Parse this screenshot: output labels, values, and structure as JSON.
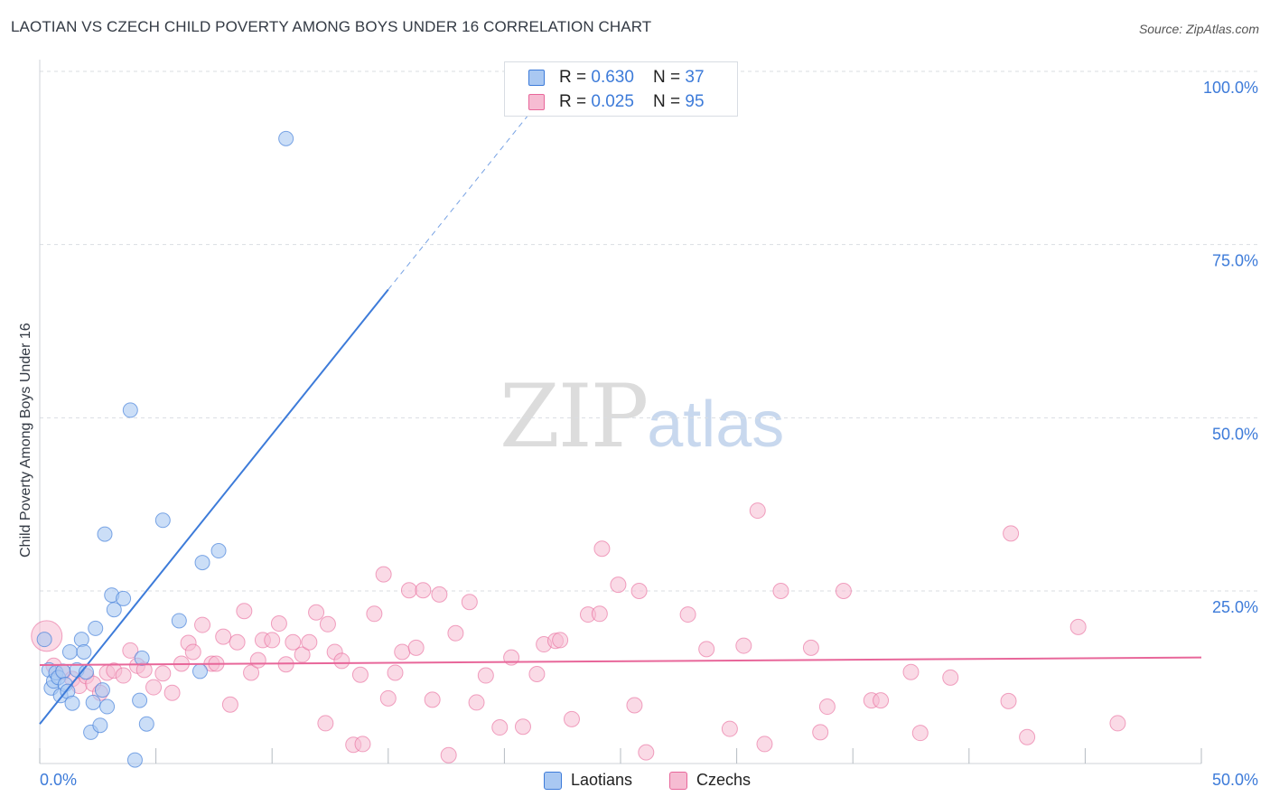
{
  "title": "LAOTIAN VS CZECH CHILD POVERTY AMONG BOYS UNDER 16 CORRELATION CHART",
  "source": "Source: ZipAtlas.com",
  "watermark": {
    "zip": "ZIP",
    "atlas": "atlas"
  },
  "legend": {
    "laotians": {
      "r_label": "R = ",
      "r_value": "0.630",
      "n_label": "N = ",
      "n_value": "37"
    },
    "czechs": {
      "r_label": "R = ",
      "r_value": "0.025",
      "n_label": "N = ",
      "n_value": "95"
    }
  },
  "bottom_legend": {
    "laotians": "Laotians",
    "czechs": "Czechs"
  },
  "chart_data": {
    "type": "scatter",
    "title": "LAOTIAN VS CZECH CHILD POVERTY AMONG BOYS UNDER 16 CORRELATION CHART",
    "xlabel": "",
    "ylabel": "Child Poverty Among Boys Under 16",
    "xlim": [
      0,
      50
    ],
    "ylim": [
      0,
      105
    ],
    "x_ticks": [
      0,
      5,
      10,
      15,
      20,
      25,
      30,
      35,
      40,
      45,
      50
    ],
    "x_tick_labels": {
      "0": "0.0%",
      "50": "50.0%"
    },
    "y_ticks": [
      25,
      50,
      75,
      100
    ],
    "y_tick_labels": [
      "25.0%",
      "50.0%",
      "75.0%",
      "100.0%"
    ],
    "grid": "horizontal dashed",
    "colors": {
      "laotians": "#3d7bd9",
      "laotians_fill": "#a9c8f2",
      "czechs": "#e8679a",
      "czechs_fill": "#f6bcd2",
      "axis_label": "#3d7bd9"
    },
    "series": [
      {
        "name": "Laotians",
        "regression": {
          "x0": 0,
          "y0": 5.8,
          "x1": 15,
          "y1": 68.5,
          "dashed_to_x": 21.5
        },
        "points": [
          [
            0.2,
            18
          ],
          [
            0.4,
            13.6
          ],
          [
            0.5,
            11
          ],
          [
            0.6,
            12
          ],
          [
            0.7,
            13.2
          ],
          [
            0.8,
            12.5
          ],
          [
            0.9,
            9.9
          ],
          [
            1.0,
            13.4
          ],
          [
            1.1,
            11.5
          ],
          [
            1.2,
            10.5
          ],
          [
            1.3,
            16.2
          ],
          [
            1.4,
            8.8
          ],
          [
            1.6,
            13.6
          ],
          [
            1.8,
            18
          ],
          [
            1.9,
            16.2
          ],
          [
            2.0,
            13.3
          ],
          [
            2.2,
            4.6
          ],
          [
            2.3,
            8.9
          ],
          [
            2.4,
            19.6
          ],
          [
            2.6,
            5.6
          ],
          [
            2.7,
            10.7
          ],
          [
            2.8,
            33.2
          ],
          [
            2.9,
            8.3
          ],
          [
            3.1,
            24.4
          ],
          [
            3.2,
            22.3
          ],
          [
            3.6,
            23.9
          ],
          [
            3.9,
            51.1
          ],
          [
            4.1,
            0.6
          ],
          [
            4.3,
            9.2
          ],
          [
            4.4,
            15.3
          ],
          [
            4.6,
            5.8
          ],
          [
            5.3,
            35.2
          ],
          [
            6.0,
            20.7
          ],
          [
            6.9,
            13.4
          ],
          [
            7.0,
            29.1
          ],
          [
            7.7,
            30.8
          ],
          [
            10.6,
            90.3
          ]
        ]
      },
      {
        "name": "Czechs",
        "regression": {
          "x0": 0,
          "y0": 14.3,
          "x1": 50,
          "y1": 15.4
        },
        "points": [
          [
            0.3,
            18.5
          ],
          [
            0.6,
            14.2
          ],
          [
            1.0,
            13.3
          ],
          [
            1.4,
            12.3
          ],
          [
            1.7,
            11.3
          ],
          [
            2.0,
            12.7
          ],
          [
            2.3,
            11.6
          ],
          [
            2.6,
            10.3
          ],
          [
            2.9,
            13.2
          ],
          [
            3.2,
            13.5
          ],
          [
            3.6,
            12.8
          ],
          [
            3.9,
            16.4
          ],
          [
            4.2,
            14.2
          ],
          [
            4.5,
            13.6
          ],
          [
            4.9,
            11.1
          ],
          [
            5.3,
            13.1
          ],
          [
            5.7,
            10.3
          ],
          [
            6.1,
            14.5
          ],
          [
            6.4,
            17.5
          ],
          [
            6.6,
            16.2
          ],
          [
            7.0,
            20.1
          ],
          [
            7.4,
            14.5
          ],
          [
            7.6,
            14.5
          ],
          [
            7.9,
            18.4
          ],
          [
            8.2,
            8.6
          ],
          [
            8.5,
            17.6
          ],
          [
            8.8,
            22.1
          ],
          [
            9.1,
            13.2
          ],
          [
            9.4,
            15
          ],
          [
            9.6,
            17.9
          ],
          [
            10.0,
            17.9
          ],
          [
            10.3,
            20.3
          ],
          [
            10.6,
            14.4
          ],
          [
            10.9,
            17.6
          ],
          [
            11.3,
            15.8
          ],
          [
            11.6,
            17.6
          ],
          [
            11.9,
            21.9
          ],
          [
            12.4,
            20.2
          ],
          [
            12.7,
            16.2
          ],
          [
            13.0,
            14.9
          ],
          [
            12.3,
            5.9
          ],
          [
            13.5,
            2.8
          ],
          [
            13.9,
            2.9
          ],
          [
            13.8,
            12.9
          ],
          [
            14.4,
            21.7
          ],
          [
            14.8,
            27.4
          ],
          [
            15.0,
            9.5
          ],
          [
            15.3,
            13.2
          ],
          [
            15.6,
            16.2
          ],
          [
            15.9,
            25.1
          ],
          [
            16.2,
            16.8
          ],
          [
            16.5,
            25.1
          ],
          [
            17.2,
            24.5
          ],
          [
            16.9,
            9.3
          ],
          [
            17.6,
            1.3
          ],
          [
            17.9,
            18.9
          ],
          [
            18.5,
            23.4
          ],
          [
            18.8,
            8.9
          ],
          [
            19.2,
            12.8
          ],
          [
            19.8,
            5.3
          ],
          [
            20.3,
            15.4
          ],
          [
            20.8,
            5.4
          ],
          [
            21.4,
            13
          ],
          [
            21.7,
            17.3
          ],
          [
            22.2,
            17.8
          ],
          [
            22.4,
            17.9
          ],
          [
            22.9,
            6.5
          ],
          [
            23.6,
            21.6
          ],
          [
            24.1,
            21.7
          ],
          [
            24.2,
            31.1
          ],
          [
            24.9,
            25.9
          ],
          [
            25.6,
            8.5
          ],
          [
            25.8,
            25
          ],
          [
            26.1,
            1.7
          ],
          [
            27.9,
            21.6
          ],
          [
            28.7,
            16.6
          ],
          [
            29.7,
            5.1
          ],
          [
            30.3,
            17.1
          ],
          [
            30.9,
            36.6
          ],
          [
            31.2,
            2.9
          ],
          [
            31.9,
            25
          ],
          [
            33.2,
            16.8
          ],
          [
            33.6,
            4.6
          ],
          [
            33.9,
            8.3
          ],
          [
            34.6,
            25
          ],
          [
            35.8,
            9.2
          ],
          [
            36.2,
            9.2
          ],
          [
            37.5,
            13.3
          ],
          [
            37.9,
            4.5
          ],
          [
            39.2,
            12.5
          ],
          [
            41.7,
            9.1
          ],
          [
            41.8,
            33.3
          ],
          [
            42.5,
            3.9
          ],
          [
            44.7,
            19.8
          ],
          [
            46.4,
            5.9
          ]
        ]
      }
    ]
  }
}
